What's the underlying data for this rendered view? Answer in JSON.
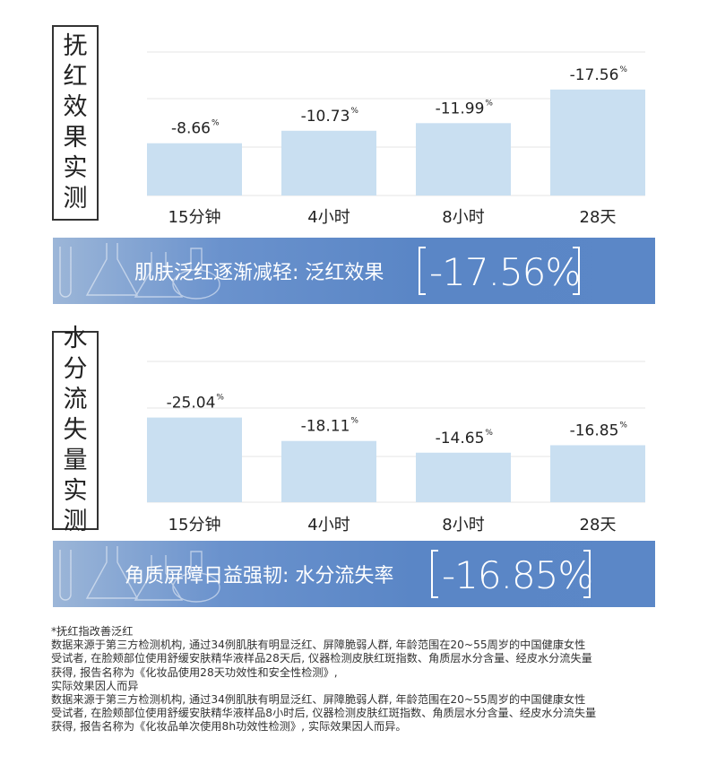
{
  "chart_data": [
    {
      "type": "bar",
      "title": "抚红效果实测",
      "categories": [
        "15分钟",
        "4小时",
        "8小时",
        "28天"
      ],
      "values": [
        -8.66,
        -10.73,
        -11.99,
        -17.56
      ],
      "value_labels": [
        "-8.66",
        "-10.73",
        "-11.99",
        "-17.56"
      ],
      "unit": "%",
      "bar_color": "#c9dff1",
      "grid": true,
      "legend": "none"
    },
    {
      "type": "bar",
      "title": "水分流失量实测",
      "categories": [
        "15分钟",
        "4小时",
        "8小时",
        "28天"
      ],
      "values": [
        -25.04,
        -18.11,
        -14.65,
        -16.85
      ],
      "value_labels": [
        "-25.04",
        "-18.11",
        "-14.65",
        "-16.85"
      ],
      "unit": "%",
      "bar_color": "#c9dff1",
      "grid": true,
      "legend": "none"
    }
  ],
  "sections": [
    {
      "title_chars": [
        "抚",
        "红",
        "效",
        "果",
        "实",
        "测"
      ],
      "banner": {
        "text": "肌肤泛红逐渐减轻: 泛红效果",
        "value": "-17.56%"
      }
    },
    {
      "title_chars": [
        "水",
        "分",
        "流",
        "失",
        "量",
        "实",
        "测"
      ],
      "banner": {
        "text": "角质屏障日益强韧: 水分流失率",
        "value": "-16.85%"
      }
    }
  ],
  "notes": [
    "*抚红指改善泛红",
    "数据来源于第三方检测机构, 通过34例肌肤有明显泛红、屏障脆弱人群, 年龄范围在20~55周岁的中国健康女性",
    "受试者, 在脸颊部位使用舒缓安肤精华液样品28天后, 仪器检测皮肤红斑指数、角质层水分含量、经皮水分流失量",
    "获得, 报告名称为《化妆品使用28天功效性和安全性检测》,",
    "实际效果因人而异",
    "数据来源于第三方检测机构, 通过34例肌肤有明显泛红、屏障脆弱人群, 年龄范围在20~55周岁的中国健康女性",
    "受试者, 在脸颊部位使用舒缓安肤精华液样品8小时后, 仪器检测皮肤红斑指数、角质层水分含量、经皮水分流失量",
    "获得, 报告名称为《化妆品单次使用8h功效性检测》, 实际效果因人而异。"
  ]
}
